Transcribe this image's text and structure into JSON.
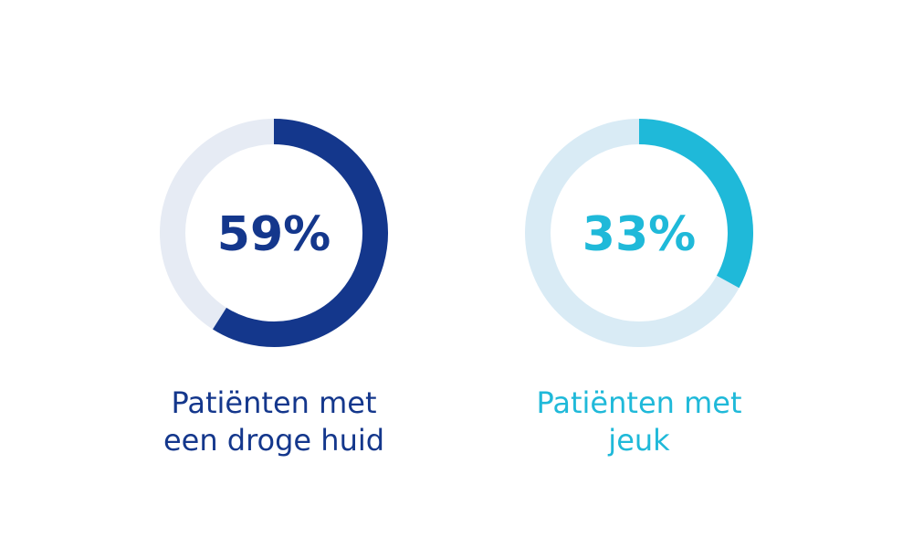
{
  "chart_data": [
    {
      "type": "pie",
      "value": 59,
      "unit": "%",
      "label_text": "59%",
      "caption_lines": [
        "Patiënten met",
        "een droge huid"
      ],
      "colors": {
        "fill": "#14378c",
        "track": "#e6ebf4",
        "text": "#14378c"
      }
    },
    {
      "type": "pie",
      "value": 33,
      "unit": "%",
      "label_text": "33%",
      "caption_lines": [
        "Patiënten met",
        "jeuk"
      ],
      "colors": {
        "fill": "#1fb9d9",
        "track": "#d9ebf5",
        "text": "#1fb9d9"
      }
    }
  ]
}
